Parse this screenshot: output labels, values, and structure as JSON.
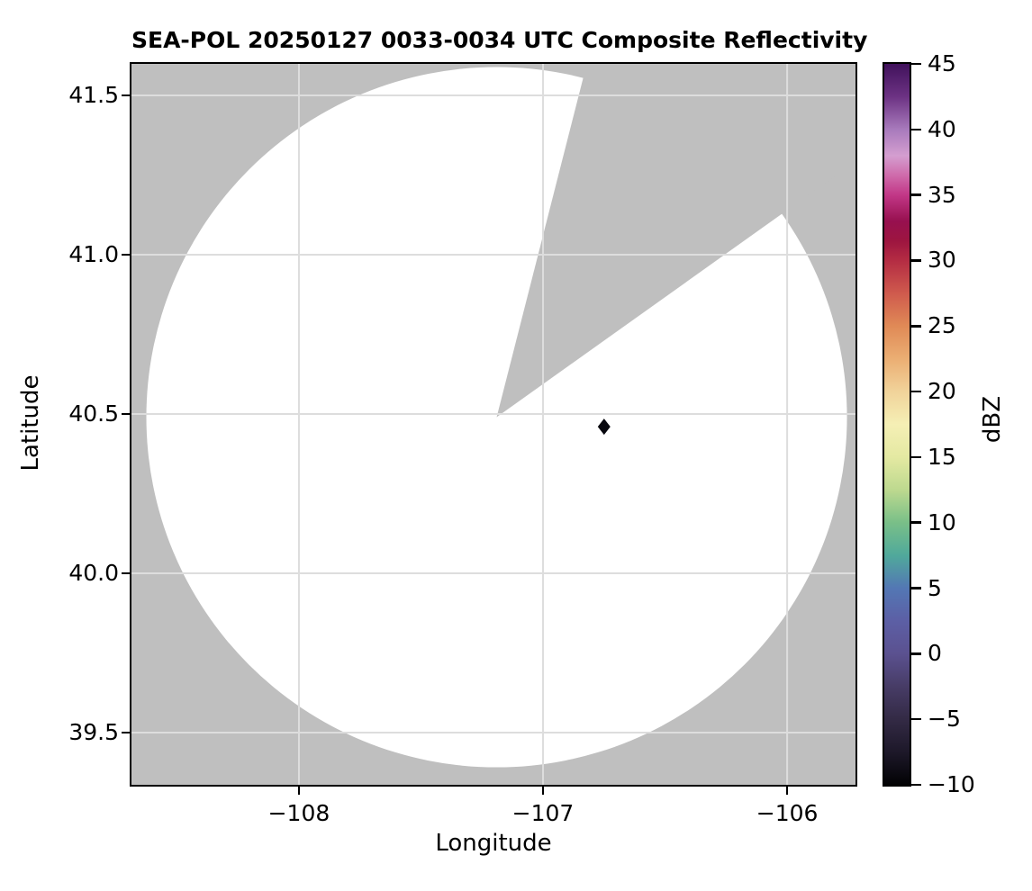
{
  "chart_data": {
    "type": "radar_ppi_map",
    "title": "SEA-POL 20250127 0033-0034 UTC Composite Reflectivity",
    "xlabel": "Longitude",
    "ylabel": "Latitude",
    "xlim": [
      -108.686,
      -105.72
    ],
    "ylim": [
      39.336,
      41.599
    ],
    "grid": true,
    "xticks": [
      {
        "value": -108,
        "label": "−108"
      },
      {
        "value": -107,
        "label": "−107"
      },
      {
        "value": -106,
        "label": "−106"
      }
    ],
    "yticks": [
      {
        "value": 41.5,
        "label": "41.5"
      },
      {
        "value": 41.0,
        "label": "41.0"
      },
      {
        "value": 40.5,
        "label": "40.5"
      },
      {
        "value": 40.0,
        "label": "40.0"
      },
      {
        "value": 39.5,
        "label": "39.5"
      }
    ],
    "radar": {
      "lon": -107.19,
      "lat": 40.49,
      "range_km": 121.5,
      "blocked_sector_azimuth_deg": [
        14.3,
        54.5
      ]
    },
    "echoes": [
      {
        "lon": -106.75,
        "lat": 40.46,
        "dbz_approx": -8,
        "color": "#08080f",
        "marker": "diamond"
      }
    ],
    "colorbar": {
      "label": "dBZ",
      "min": -10,
      "max": 45,
      "ticks": [
        {
          "value": 45,
          "label": "45"
        },
        {
          "value": 40,
          "label": "40"
        },
        {
          "value": 35,
          "label": "35"
        },
        {
          "value": 30,
          "label": "30"
        },
        {
          "value": 25,
          "label": "25"
        },
        {
          "value": 20,
          "label": "20"
        },
        {
          "value": 15,
          "label": "15"
        },
        {
          "value": 10,
          "label": "10"
        },
        {
          "value": 5,
          "label": "5"
        },
        {
          "value": 0,
          "label": "0"
        },
        {
          "value": -5,
          "label": "−5"
        },
        {
          "value": -10,
          "label": "−10"
        }
      ],
      "stops": [
        {
          "value": 45.0,
          "color": "#41125c"
        },
        {
          "value": 42.5,
          "color": "#6c3283"
        },
        {
          "value": 40.0,
          "color": "#a87abc"
        },
        {
          "value": 38.0,
          "color": "#d49ed0"
        },
        {
          "value": 36.5,
          "color": "#cf6bab"
        },
        {
          "value": 35.0,
          "color": "#c23787"
        },
        {
          "value": 33.0,
          "color": "#97104f"
        },
        {
          "value": 31.5,
          "color": "#9d1540"
        },
        {
          "value": 30.0,
          "color": "#b42c43"
        },
        {
          "value": 27.5,
          "color": "#cf5a4d"
        },
        {
          "value": 25.0,
          "color": "#e08a56"
        },
        {
          "value": 22.5,
          "color": "#ebae73"
        },
        {
          "value": 20.0,
          "color": "#f1d39a"
        },
        {
          "value": 17.5,
          "color": "#f5efb5"
        },
        {
          "value": 15.0,
          "color": "#e4e9a2"
        },
        {
          "value": 12.5,
          "color": "#bdd98f"
        },
        {
          "value": 10.0,
          "color": "#79bf88"
        },
        {
          "value": 7.5,
          "color": "#50a99b"
        },
        {
          "value": 5.0,
          "color": "#5377b4"
        },
        {
          "value": 2.5,
          "color": "#5c5fa5"
        },
        {
          "value": 0.0,
          "color": "#5b5190"
        },
        {
          "value": -2.5,
          "color": "#473c66"
        },
        {
          "value": -5.0,
          "color": "#332a45"
        },
        {
          "value": -7.5,
          "color": "#1d1829"
        },
        {
          "value": -10.0,
          "color": "#020204"
        }
      ]
    },
    "colors": {
      "no_data": "#bfbfbf",
      "data_background": "#ffffff",
      "grid": "#dddddd",
      "spine": "#000000"
    }
  }
}
